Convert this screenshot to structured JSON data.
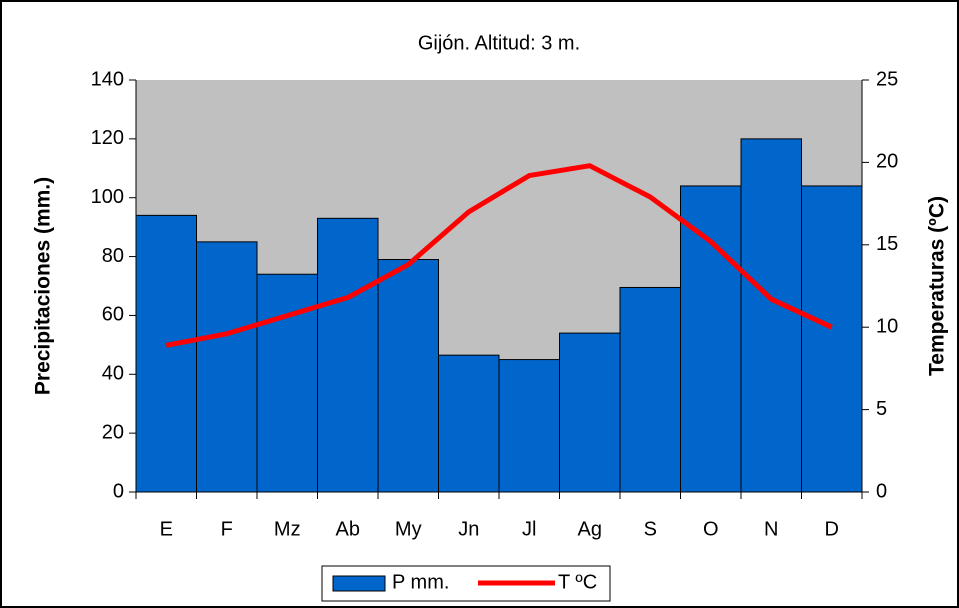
{
  "chart_data": {
    "type": "bar",
    "title": "Gijón. Altitud: 3 m.",
    "y_label": "Precipitaciones (mm.)",
    "y2_label": "Temperaturas (ºC)",
    "categories": [
      "E",
      "F",
      "Mz",
      "Ab",
      "My",
      "Jn",
      "Jl",
      "Ag",
      "S",
      "O",
      "N",
      "D"
    ],
    "series": [
      {
        "name": "P mm.",
        "type": "bar",
        "color": "#0066cc",
        "values": [
          94,
          85,
          74,
          93,
          79,
          46.5,
          45,
          54,
          69.5,
          104,
          120,
          104
        ]
      },
      {
        "name": "T ºC",
        "type": "line",
        "axis": "y2",
        "color": "#ff0000",
        "values": [
          8.9,
          9.6,
          10.7,
          11.8,
          13.8,
          17.0,
          19.2,
          19.8,
          17.9,
          15.2,
          11.7,
          10.0
        ]
      }
    ],
    "ylim": [
      0,
      140
    ],
    "yticks": [
      0,
      20,
      40,
      60,
      80,
      100,
      120,
      140
    ],
    "y2lim": [
      0,
      25
    ],
    "y2ticks": [
      0,
      5,
      10,
      15,
      20,
      25
    ],
    "plot_background": "#c0c0c0",
    "legend": "bottom"
  }
}
